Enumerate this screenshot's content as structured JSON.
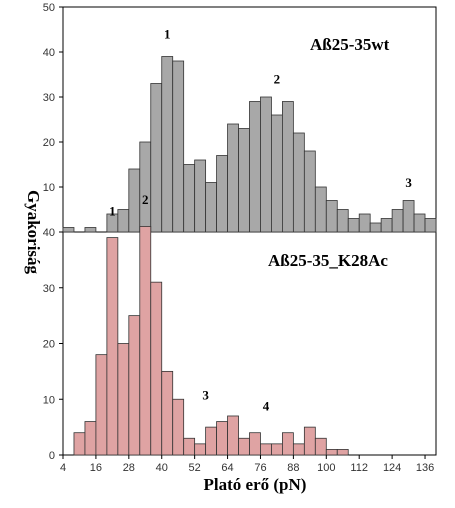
{
  "chart_data": [
    {
      "type": "bar",
      "title": "Aß25-35wt",
      "color": "#a8a8a8",
      "bin_width": 4,
      "x_bin_starts": [
        4,
        8,
        12,
        16,
        20,
        24,
        28,
        32,
        36,
        40,
        44,
        48,
        52,
        56,
        60,
        64,
        68,
        72,
        76,
        80,
        84,
        88,
        92,
        96,
        100,
        104,
        108,
        112,
        116,
        120,
        124,
        128,
        132,
        136
      ],
      "values": [
        1,
        0,
        1,
        0,
        4,
        5,
        14,
        20,
        33,
        39,
        38,
        15,
        16,
        11,
        17,
        24,
        23,
        29,
        30,
        26,
        29,
        22,
        18,
        10,
        7,
        5,
        3,
        4,
        2,
        3,
        5,
        7,
        4,
        3
      ],
      "ylim": [
        0,
        50
      ],
      "yticks": [
        0,
        10,
        20,
        30,
        40,
        50
      ],
      "annotations": [
        {
          "label": "1",
          "x": 42,
          "y": 43
        },
        {
          "label": "2",
          "x": 82,
          "y": 33
        },
        {
          "label": "3",
          "x": 130,
          "y": 10
        }
      ]
    },
    {
      "type": "bar",
      "title": "Aß25-35_K28Ac",
      "color": "#dfa3a3",
      "bin_width": 4,
      "x_bin_starts": [
        4,
        8,
        12,
        16,
        20,
        24,
        28,
        32,
        36,
        40,
        44,
        48,
        52,
        56,
        60,
        64,
        68,
        72,
        76,
        80,
        84,
        88,
        92,
        96,
        100,
        104,
        108,
        112,
        116,
        120,
        124,
        128,
        132,
        136
      ],
      "values": [
        0,
        4,
        6,
        18,
        39,
        20,
        25,
        41,
        31,
        15,
        10,
        3,
        2,
        5,
        6,
        7,
        3,
        4,
        2,
        2,
        4,
        2,
        5,
        3,
        1,
        1,
        0,
        0,
        0,
        0,
        0,
        0,
        0,
        0
      ],
      "ylim": [
        0,
        40
      ],
      "yticks": [
        0,
        10,
        20,
        30,
        40
      ],
      "annotations": [
        {
          "label": "1",
          "x": 22,
          "y": 43
        },
        {
          "label": "2",
          "x": 34,
          "y": 45
        },
        {
          "label": "3",
          "x": 56,
          "y": 10
        },
        {
          "label": "4",
          "x": 78,
          "y": 8
        }
      ]
    }
  ],
  "xlabel": "Plató erő (pN)",
  "ylabel": "Gyakoriság",
  "xlim": [
    4,
    140
  ],
  "xticks": [
    4,
    16,
    28,
    40,
    52,
    64,
    76,
    88,
    100,
    112,
    124,
    136
  ]
}
